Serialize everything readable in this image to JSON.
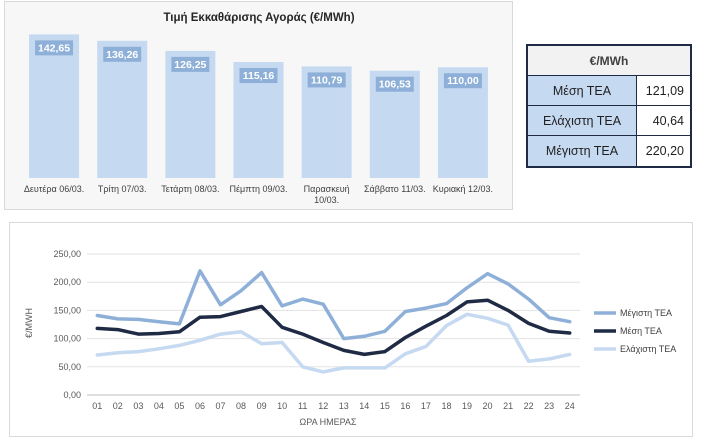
{
  "bar_chart": {
    "title": "Τιμή Εκκαθάρισης Αγοράς (€/MWh)"
  },
  "table": {
    "header": "€/MWh",
    "rows": [
      {
        "label": "Μέση ΤΕΑ",
        "value": "121,09"
      },
      {
        "label": "Ελάχιστη ΤΕΑ",
        "value": "40,64"
      },
      {
        "label": "Μέγιστη ΤΕΑ",
        "value": "220,20"
      }
    ]
  },
  "line_chart": {
    "xlabel": "ΩΡΑ ΗΜΕΡΑΣ",
    "ylabel": "€/MWH"
  },
  "colors": {
    "bar": "#c5d9f1",
    "max_series": "#8eb0d8",
    "mean_series": "#1f2a44",
    "min_series": "#c5d9f1",
    "label_box": "#8eb0d8"
  },
  "chart_data": [
    {
      "type": "bar",
      "title": "Τιμή Εκκαθάρισης Αγοράς (€/MWh)",
      "categories": [
        [
          "Δευτέρα 06/03."
        ],
        [
          "Τρίτη 07/03."
        ],
        [
          "Τετάρτη 08/03."
        ],
        [
          "Πέμπτη 09/03."
        ],
        [
          "Παρασκευή",
          "10/03."
        ],
        [
          "Σάββατο 11/03."
        ],
        [
          "Κυριακή 12/03."
        ]
      ],
      "values": [
        142.65,
        136.26,
        126.25,
        115.16,
        110.79,
        106.53,
        110.0
      ],
      "value_labels": [
        "142,65",
        "136,26",
        "126,25",
        "115,16",
        "110,79",
        "106,53",
        "110,00"
      ],
      "ylim": [
        0,
        145
      ],
      "grid": false
    },
    {
      "type": "line",
      "x": [
        "01",
        "02",
        "03",
        "04",
        "05",
        "06",
        "07",
        "08",
        "09",
        "10",
        "11",
        "12",
        "13",
        "14",
        "15",
        "16",
        "17",
        "18",
        "19",
        "20",
        "21",
        "22",
        "23",
        "24"
      ],
      "xlabel": "ΩΡΑ ΗΜΕΡΑΣ",
      "ylabel": "€/MWH",
      "ylim": [
        0,
        250
      ],
      "yticks": [
        "0,00",
        "50,00",
        "100,00",
        "150,00",
        "200,00",
        "250,00"
      ],
      "grid": true,
      "legend": "right",
      "series": [
        {
          "name": "Μέγιστη ΤΕΑ",
          "values": [
            141,
            135,
            134,
            130,
            126,
            220,
            160,
            185,
            217,
            158,
            170,
            161,
            100,
            104,
            113,
            148,
            154,
            162,
            190,
            215,
            197,
            170,
            137,
            130
          ]
        },
        {
          "name": "Μέση ΤΕΑ",
          "values": [
            118,
            116,
            108,
            109,
            112,
            138,
            139,
            148,
            157,
            120,
            108,
            93,
            79,
            72,
            77,
            102,
            122,
            141,
            165,
            168,
            150,
            127,
            113,
            110
          ]
        },
        {
          "name": "Ελάχιστη ΤΕΑ",
          "values": [
            71,
            75,
            77,
            82,
            88,
            97,
            108,
            112,
            91,
            93,
            50,
            41,
            48,
            48,
            48,
            73,
            86,
            123,
            143,
            136,
            124,
            60,
            64,
            72
          ]
        }
      ]
    }
  ]
}
